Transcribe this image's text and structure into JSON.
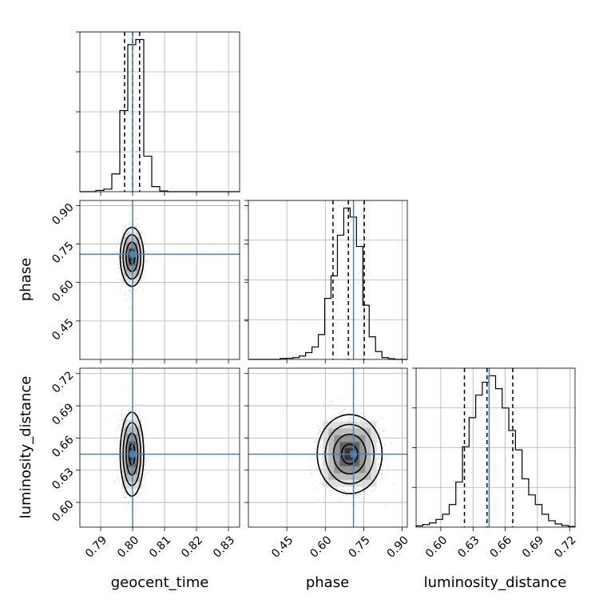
{
  "chart_data": {
    "type": "corner",
    "parameters": [
      "geocent_time",
      "phase",
      "luminosity_distance"
    ],
    "truths": [
      0.8,
      0.71,
      0.645
    ],
    "ranges": [
      [
        0.7835,
        0.8335
      ],
      [
        0.3,
        0.92
      ],
      [
        0.577,
        0.725
      ]
    ],
    "ticks": [
      [
        0.79,
        0.8,
        0.81,
        0.82,
        0.83
      ],
      [
        0.45,
        0.6,
        0.75,
        0.9
      ],
      [
        0.6,
        0.63,
        0.66,
        0.69,
        0.72
      ]
    ],
    "tick_labels": [
      [
        "0.79",
        "0.80",
        "0.81",
        "0.82",
        "0.83"
      ],
      [
        "0.45",
        "0.60",
        "0.75",
        "0.90"
      ],
      [
        "0.60",
        "0.63",
        "0.66",
        "0.69",
        "0.72"
      ]
    ],
    "quantiles": [
      [
        0.7975,
        0.8,
        0.8022
      ],
      [
        0.63,
        0.69,
        0.752
      ],
      [
        0.622,
        0.643,
        0.667
      ]
    ],
    "hist_bins": [
      [
        0.7835,
        0.8335
      ],
      [
        0.3,
        0.92
      ],
      [
        0.577,
        0.725
      ]
    ],
    "histograms": [
      [
        0.0,
        0.0,
        0.5,
        1.0,
        7.0,
        32.0,
        58.0,
        60.0,
        14.0,
        2.0,
        0.3,
        0.0,
        0.0,
        0.0,
        0.0,
        0.0,
        0.0,
        0.0,
        0.0,
        0.0
      ],
      [
        0.0,
        0.0,
        0.0,
        0.0,
        0.0,
        0.4,
        0.5,
        0.8,
        1.5,
        3.0,
        5.5,
        11.0,
        27.0,
        37.0,
        55.0,
        67.0,
        63.0,
        50.0,
        24.0,
        10.0,
        3.5,
        0.8,
        0.3,
        0.0,
        0.0
      ],
      [
        0.4,
        0.8,
        1.3,
        2.4,
        4.0,
        7.0,
        14.0,
        25.0,
        34.0,
        41.0,
        45.0,
        47.0,
        43.0,
        37.0,
        30.0,
        24.0,
        15.0,
        10.0,
        7.0,
        4.0,
        2.0,
        1.0,
        0.5,
        0.2
      ]
    ],
    "pair_stats": {
      "1_0": {
        "mean": [
          0.7998,
          0.7
        ],
        "sd": [
          0.0016,
          0.05
        ]
      },
      "2_0": {
        "mean": [
          0.7998,
          0.645
        ],
        "sd": [
          0.0016,
          0.017
        ]
      },
      "2_1": {
        "mean": [
          0.695,
          0.645
        ],
        "sd": [
          0.055,
          0.016
        ]
      }
    },
    "contour_levels_sigma": [
      0.5,
      1.0,
      1.5,
      2.0
    ],
    "grid": true,
    "truth_color": "#4682b4",
    "hist_color": "#000000",
    "point_color": "#808080"
  }
}
